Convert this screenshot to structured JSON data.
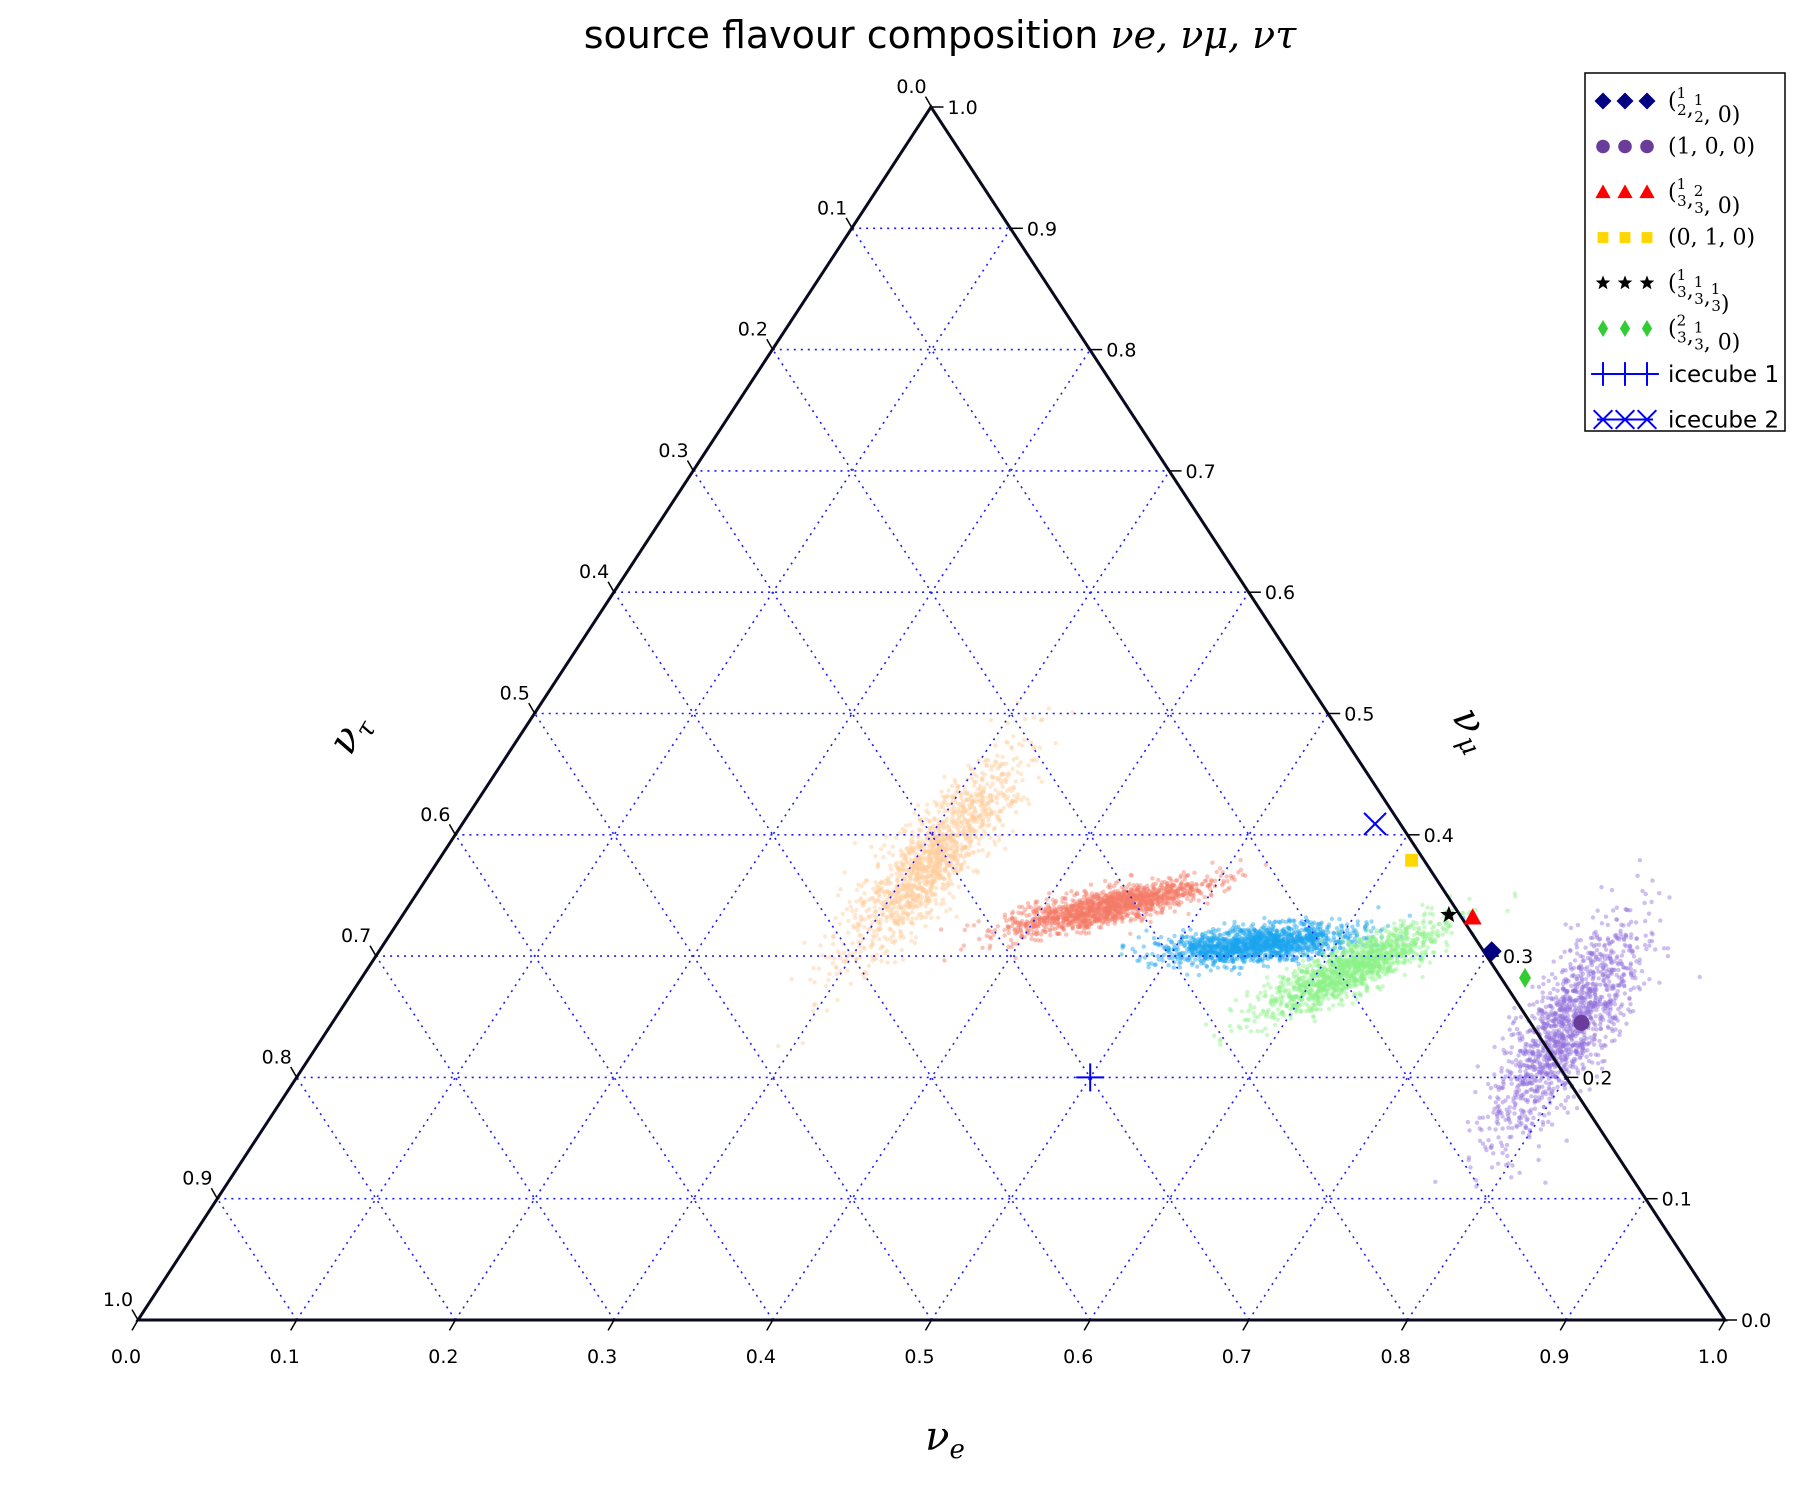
{
  "chart_data": {
    "type": "ternary-scatter",
    "title_text": "source flavour composition ",
    "title_math": "νe, νμ, ντ",
    "axes": {
      "bottom": {
        "label": "νe",
        "sub": "e",
        "ticks": [
          "0.0",
          "0.1",
          "0.2",
          "0.3",
          "0.4",
          "0.5",
          "0.6",
          "0.7",
          "0.8",
          "0.9",
          "1.0"
        ]
      },
      "right": {
        "label": "νμ",
        "sub": "μ",
        "ticks": [
          "0.0",
          "0.1",
          "0.2",
          "0.3",
          "0.4",
          "0.5",
          "0.6",
          "0.7",
          "0.8",
          "0.9",
          "1.0"
        ]
      },
      "left": {
        "label": "ντ",
        "sub": "τ",
        "ticks": [
          "0.0",
          "0.1",
          "0.2",
          "0.3",
          "0.4",
          "0.5",
          "0.6",
          "0.7",
          "0.8",
          "0.9",
          "1.0"
        ]
      }
    },
    "grid": true,
    "grid_color": "#1a1aff",
    "legend_position": "top-right",
    "clouds": [
      {
        "name": "cloud-peach",
        "color": "#ffcc99",
        "center": [
          0.31,
          0.38
        ],
        "spread": [
          0.045,
          0.012
        ],
        "angle": -50
      },
      {
        "name": "cloud-salmon",
        "color": "#f47a66",
        "center": [
          0.44,
          0.34
        ],
        "spread": [
          0.035,
          0.006
        ],
        "angle": -12
      },
      {
        "name": "cloud-sky",
        "color": "#1aa3ee",
        "center": [
          0.55,
          0.31
        ],
        "spread": [
          0.034,
          0.006
        ],
        "angle": -5
      },
      {
        "name": "cloud-green",
        "color": "#8cf287",
        "center": [
          0.62,
          0.29
        ],
        "spread": [
          0.035,
          0.008
        ],
        "angle": -25
      },
      {
        "name": "cloud-purple",
        "color": "#9370db",
        "center": [
          0.78,
          0.24
        ],
        "spread": [
          0.042,
          0.014
        ],
        "angle": -58
      }
    ],
    "series": [
      {
        "name": "(1/2, 1/2, 0)",
        "label_math": [
          "(",
          "1/2",
          ",",
          "1/2",
          ", 0)"
        ],
        "marker": "diamond",
        "color": "#000080",
        "nu_e": 0.701,
        "nu_mu": 0.304
      },
      {
        "name": "(1, 0, 0)",
        "label_math": [
          "(1, 0, 0)"
        ],
        "marker": "circle",
        "color": "#6a3d9a",
        "nu_e": 0.787,
        "nu_mu": 0.245
      },
      {
        "name": "(1/3, 2/3, 0)",
        "label_math": [
          "(",
          "1/3",
          ",",
          "2/3",
          ", 0)"
        ],
        "marker": "triangle",
        "color": "#ff0000",
        "nu_e": 0.675,
        "nu_mu": 0.332
      },
      {
        "name": "(0, 1, 0)",
        "label_math": [
          "(0, 1, 0)"
        ],
        "marker": "square",
        "color": "#ffd700",
        "nu_e": 0.613,
        "nu_mu": 0.379
      },
      {
        "name": "(1/3, 1/3, 1/3)",
        "label_math": [
          "(",
          "1/3",
          ",",
          "1/3",
          ",",
          "1/3",
          ")"
        ],
        "marker": "star",
        "color": "#000000",
        "nu_e": 0.659,
        "nu_mu": 0.334
      },
      {
        "name": "(2/3, 1/3, 0)",
        "label_math": [
          "(",
          "2/3",
          ",",
          "1/3",
          ", 0)"
        ],
        "marker": "thin-diamond",
        "color": "#32cd32",
        "nu_e": 0.733,
        "nu_mu": 0.282
      },
      {
        "name": "icecube 1",
        "marker": "plus",
        "color": "#0000ff",
        "nu_e": 0.5,
        "nu_mu": 0.2
      },
      {
        "name": "icecube 2",
        "marker": "x",
        "color": "#0000ff",
        "nu_e": 0.575,
        "nu_mu": 0.409
      }
    ]
  }
}
